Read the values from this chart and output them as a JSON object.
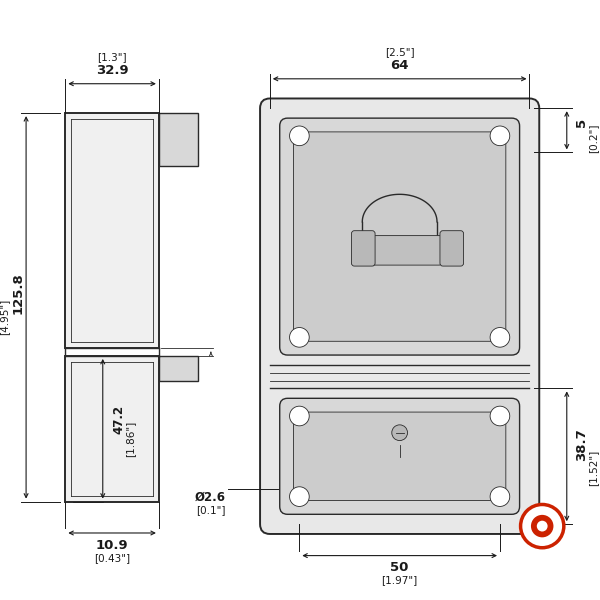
{
  "bg_color": "#ffffff",
  "line_color": "#2a2a2a",
  "dim_color": "#1a1a1a",
  "lw": 1.0,
  "lw_thin": 0.6,
  "lw_thick": 1.4,
  "font_size_large": 9.5,
  "font_size_small": 7.5,
  "dims": {
    "top_width_mm": "32.9",
    "top_width_in": "[1.3\"]",
    "total_height_mm": "125.8",
    "total_height_in": "[4.95\"]",
    "lower_height_mm": "47.2",
    "lower_height_in": "[1.86\"]",
    "depth_mm": "10.9",
    "depth_in": "[0.43\"]",
    "hole_dia_mm": "Ø2.6",
    "hole_dia_in": "[0.1\"]",
    "front_width_mm": "64",
    "front_width_in": "[2.5\"]",
    "flange_mm": "5",
    "flange_in": "[0.2\"]",
    "lower_front_mm": "38.7",
    "lower_front_in": "[1.52\"]",
    "hole_span_mm": "50",
    "hole_span_in": "[1.97\"]"
  }
}
